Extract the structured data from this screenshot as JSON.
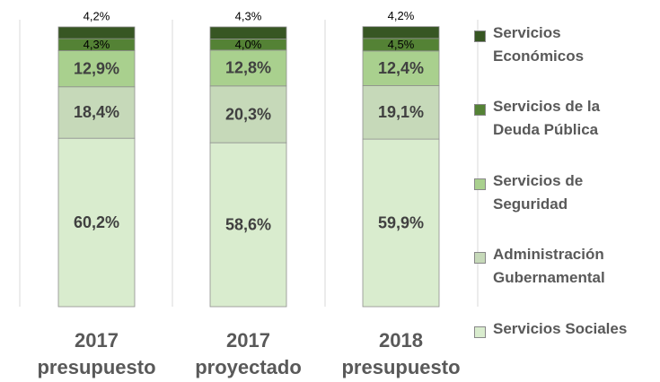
{
  "chart_data": {
    "type": "stacked_bar",
    "categories": [
      "2017 presupuesto",
      "2017 proyectado",
      "2018 presupuesto"
    ],
    "ylim": [
      0,
      100
    ],
    "series": [
      {
        "name": "Servicios Sociales",
        "color": "#d9ecce",
        "values": [
          60.2,
          58.6,
          59.9
        ],
        "value_labels": [
          "60,2%",
          "58,6%",
          "59,9%"
        ]
      },
      {
        "name": "Administración Gubernamental",
        "color": "#c6d9b9",
        "values": [
          18.4,
          20.3,
          19.1
        ],
        "value_labels": [
          "18,4%",
          "20,3%",
          "19,1%"
        ]
      },
      {
        "name": "Servicios de Seguridad",
        "color": "#a9d08e",
        "values": [
          12.9,
          12.8,
          12.4
        ],
        "value_labels": [
          "12,9%",
          "12,8%",
          "12,4%"
        ]
      },
      {
        "name": "Servicios de la Deuda Pública",
        "color": "#548235",
        "values": [
          4.3,
          4.0,
          4.5
        ],
        "value_labels": [
          "4,3%",
          "4,0%",
          "4,5%"
        ]
      },
      {
        "name": "Servicios Económicos",
        "color": "#375623",
        "values": [
          4.2,
          4.3,
          4.2
        ],
        "value_labels": [
          "4,2%",
          "4,3%",
          "4,2%"
        ]
      }
    ]
  }
}
